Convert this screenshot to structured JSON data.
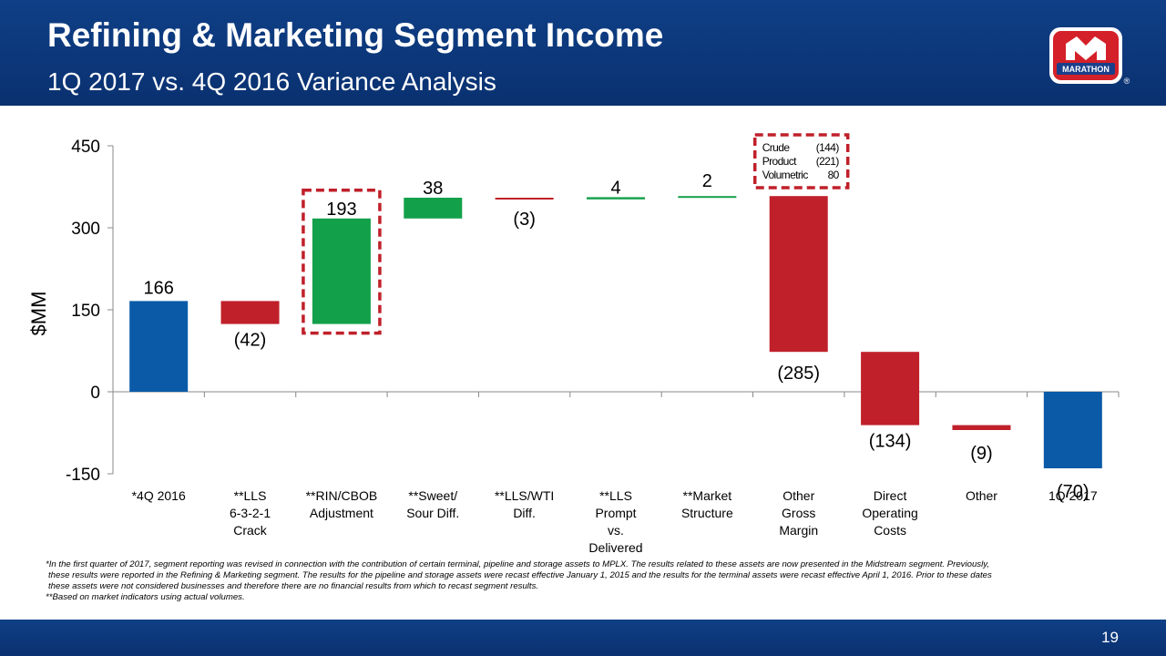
{
  "header": {
    "title": "Refining & Marketing Segment Income",
    "subtitle": "1Q 2017 vs. 4Q 2016 Variance Analysis",
    "logo_text": "MARATHON",
    "logo_mark": "®"
  },
  "colors": {
    "header_bg": "#0f3f86",
    "total_bar": "#0a5aa8",
    "decrease_bar": "#c0202a",
    "increase_bar": "#13a04a",
    "highlight_box": "#c0202a"
  },
  "chart_data": {
    "type": "bar",
    "subtype": "waterfall",
    "ylabel": "$MM",
    "ylim": [
      -150,
      450
    ],
    "yticks": [
      "450",
      "300",
      "150",
      "0",
      "-150"
    ],
    "categories": [
      [
        "*4Q 2016"
      ],
      [
        "**LLS",
        "6-3-2-1",
        "Crack"
      ],
      [
        "**RIN/CBOB",
        "Adjustment"
      ],
      [
        "**Sweet/",
        "Sour Diff."
      ],
      [
        "**LLS/WTI",
        "Diff."
      ],
      [
        "**LLS",
        "Prompt",
        "vs.",
        "Delivered"
      ],
      [
        "**Market",
        "Structure"
      ],
      [
        "Other",
        "Gross",
        "Margin"
      ],
      [
        "Direct",
        "Operating",
        "Costs"
      ],
      [
        "Other"
      ],
      [
        "1Q 2017"
      ]
    ],
    "values": [
      166,
      -42,
      193,
      38,
      -3,
      4,
      2,
      -285,
      -134,
      -9,
      -70
    ],
    "bar_kind": [
      "total",
      "delta",
      "delta",
      "delta",
      "delta",
      "delta",
      "delta",
      "delta",
      "delta",
      "delta",
      "total"
    ],
    "data_labels": [
      "166",
      "(42)",
      "193",
      "38",
      "(3)",
      "4",
      "2",
      "(285)",
      "(134)",
      "(9)",
      "(70)"
    ],
    "highlighted": [
      2,
      7
    ],
    "annotation": [
      {
        "label": "Crude",
        "value": "(144)"
      },
      {
        "label": "Product",
        "value": "(221)"
      },
      {
        "label": "Volumetric",
        "value": "80"
      }
    ]
  },
  "footnotes": [
    "*In the first quarter of 2017, segment reporting was revised in connection with the contribution of certain terminal, pipeline and storage assets to MPLX. The results related to these assets are now presented in the Midstream segment. Previously,",
    "these results were reported in the Refining & Marketing segment. The results for the pipeline and storage assets were recast effective January 1, 2015 and the results for the terminal assets were recast effective April 1, 2016. Prior to these dates",
    "these assets were not considered businesses and therefore there are no financial results from which to recast segment results.",
    "**Based on market indicators using actual volumes."
  ],
  "page_number": "19"
}
